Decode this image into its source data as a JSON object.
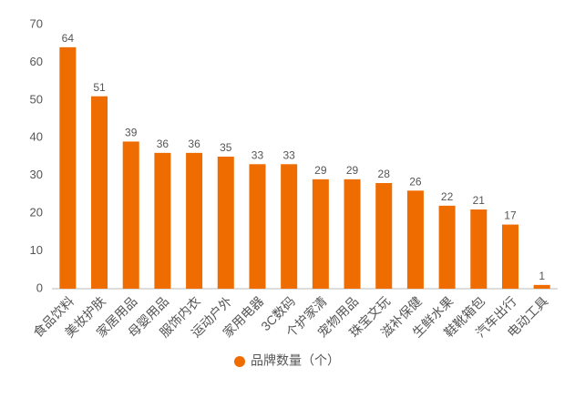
{
  "chart_data": {
    "type": "bar",
    "categories": [
      "食品饮料",
      "美妆护肤",
      "家居用品",
      "母婴用品",
      "服饰内衣",
      "运动户外",
      "家用电器",
      "3C数码",
      "个护家清",
      "宠物用品",
      "珠宝文玩",
      "滋补保健",
      "生鲜水果",
      "鞋靴箱包",
      "汽车出行",
      "电动工具"
    ],
    "series": [
      {
        "name": "品牌数量（个）",
        "color": "#ee6c00",
        "values": [
          64,
          51,
          39,
          36,
          36,
          35,
          33,
          33,
          29,
          29,
          28,
          26,
          22,
          21,
          17,
          1
        ]
      }
    ],
    "ylim": [
      0,
      70
    ],
    "yticks": [
      0,
      10,
      20,
      30,
      40,
      50,
      60,
      70
    ],
    "grid": false,
    "legend": "bottom"
  }
}
